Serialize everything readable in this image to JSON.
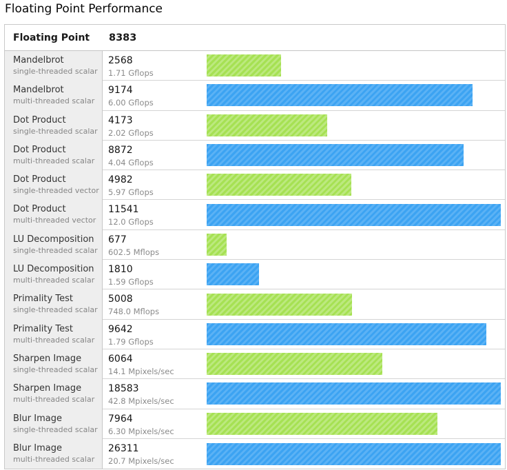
{
  "page_title": "Floating Point Performance",
  "header": {
    "label": "Floating Point",
    "score": "8383"
  },
  "chart_data": {
    "type": "bar",
    "orientation": "horizontal",
    "title": "Floating Point Performance",
    "group_label": "Floating Point",
    "group_score": 8383,
    "full_scale_score": 10150,
    "gridlines": false,
    "legend": "none",
    "colors": {
      "single": {
        "base": "#a6e153",
        "stripe": "#bce97f"
      },
      "multi": {
        "base": "#3ca3f2",
        "stripe": "#5bb2f5"
      }
    },
    "rows": [
      {
        "workload": "Mandelbrot",
        "variant": "single-threaded scalar",
        "score": 2568,
        "rate": "1.71 Gflops",
        "thread_type": "single"
      },
      {
        "workload": "Mandelbrot",
        "variant": "multi-threaded scalar",
        "score": 9174,
        "rate": "6.00 Gflops",
        "thread_type": "multi"
      },
      {
        "workload": "Dot Product",
        "variant": "single-threaded scalar",
        "score": 4173,
        "rate": "2.02 Gflops",
        "thread_type": "single"
      },
      {
        "workload": "Dot Product",
        "variant": "multi-threaded scalar",
        "score": 8872,
        "rate": "4.04 Gflops",
        "thread_type": "multi"
      },
      {
        "workload": "Dot Product",
        "variant": "single-threaded vector",
        "score": 4982,
        "rate": "5.97 Gflops",
        "thread_type": "single"
      },
      {
        "workload": "Dot Product",
        "variant": "multi-threaded vector",
        "score": 11541,
        "rate": "12.0 Gflops",
        "thread_type": "multi"
      },
      {
        "workload": "LU Decomposition",
        "variant": "single-threaded scalar",
        "score": 677,
        "rate": "602.5 Mflops",
        "thread_type": "single"
      },
      {
        "workload": "LU Decomposition",
        "variant": "multi-threaded scalar",
        "score": 1810,
        "rate": "1.59 Gflops",
        "thread_type": "multi"
      },
      {
        "workload": "Primality Test",
        "variant": "single-threaded scalar",
        "score": 5008,
        "rate": "748.0 Mflops",
        "thread_type": "single"
      },
      {
        "workload": "Primality Test",
        "variant": "multi-threaded scalar",
        "score": 9642,
        "rate": "1.79 Gflops",
        "thread_type": "multi"
      },
      {
        "workload": "Sharpen Image",
        "variant": "single-threaded scalar",
        "score": 6064,
        "rate": "14.1 Mpixels/sec",
        "thread_type": "single"
      },
      {
        "workload": "Sharpen Image",
        "variant": "multi-threaded scalar",
        "score": 18583,
        "rate": "42.8 Mpixels/sec",
        "thread_type": "multi"
      },
      {
        "workload": "Blur Image",
        "variant": "single-threaded scalar",
        "score": 7964,
        "rate": "6.30 Mpixels/sec",
        "thread_type": "single"
      },
      {
        "workload": "Blur Image",
        "variant": "multi-threaded scalar",
        "score": 26311,
        "rate": "20.7 Mpixels/sec",
        "thread_type": "multi"
      }
    ]
  }
}
